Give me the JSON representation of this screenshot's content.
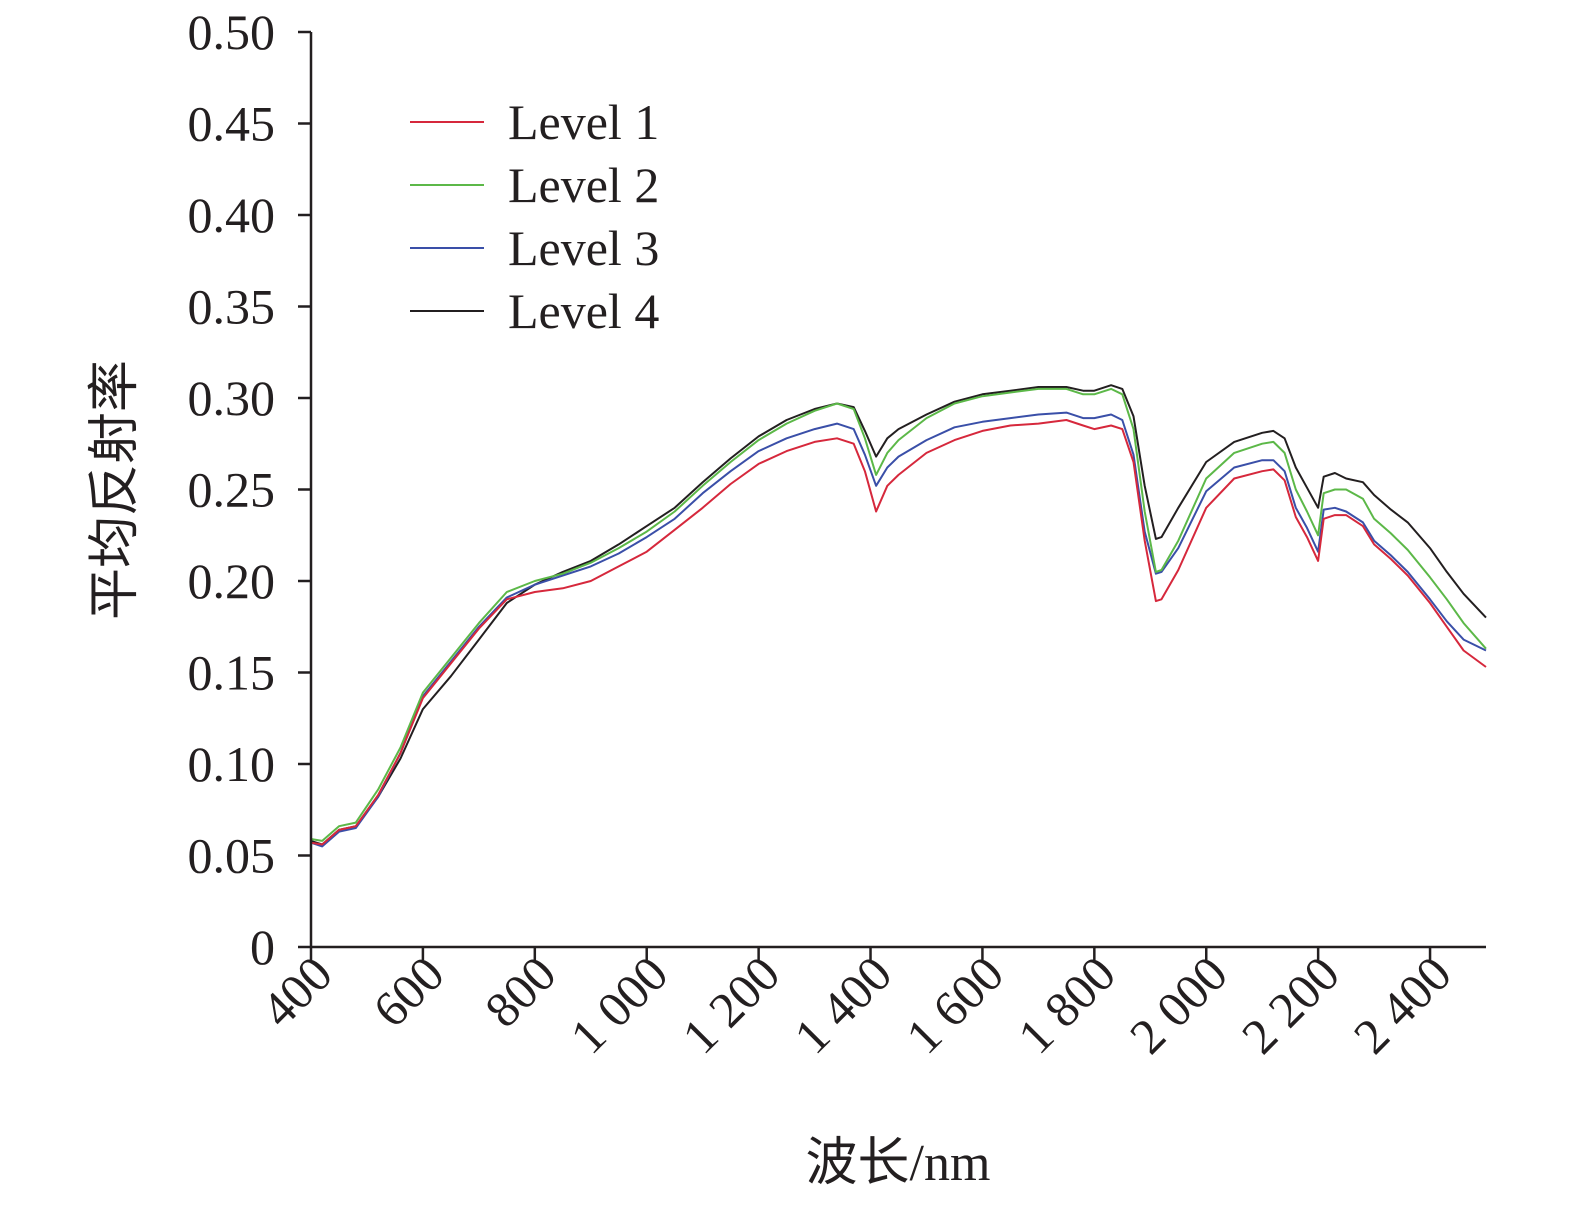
{
  "chart_data": {
    "type": "line",
    "title": "",
    "xlabel": "波长/nm",
    "ylabel": "平均反射率",
    "xlim": [
      400,
      2500
    ],
    "ylim": [
      0,
      0.5
    ],
    "x_ticks": [
      400,
      600,
      800,
      1000,
      1200,
      1400,
      1600,
      1800,
      2000,
      2200,
      2400
    ],
    "x_tick_labels": [
      "400",
      "600",
      "800",
      "1 000",
      "1 200",
      "1 400",
      "1 600",
      "1 800",
      "2 000",
      "2 200",
      "2 400"
    ],
    "y_ticks": [
      0,
      0.05,
      0.1,
      0.15,
      0.2,
      0.25,
      0.3,
      0.35,
      0.4,
      0.45,
      0.5
    ],
    "y_tick_labels": [
      "0",
      "0.05",
      "0.10",
      "0.15",
      "0.20",
      "0.25",
      "0.30",
      "0.35",
      "0.40",
      "0.45",
      "0.50"
    ],
    "grid": false,
    "legend_position": "top-left",
    "x": [
      400,
      420,
      450,
      480,
      520,
      560,
      600,
      650,
      700,
      750,
      800,
      850,
      900,
      950,
      1000,
      1050,
      1100,
      1150,
      1200,
      1250,
      1300,
      1340,
      1370,
      1390,
      1410,
      1430,
      1450,
      1500,
      1550,
      1600,
      1650,
      1700,
      1750,
      1780,
      1800,
      1830,
      1850,
      1870,
      1890,
      1910,
      1920,
      1950,
      2000,
      2050,
      2100,
      2120,
      2140,
      2160,
      2180,
      2200,
      2210,
      2230,
      2250,
      2280,
      2300,
      2330,
      2360,
      2400,
      2430,
      2460,
      2500
    ],
    "series": [
      {
        "name": "Level 1",
        "color": "#d6283c",
        "values": [
          0.057,
          0.056,
          0.064,
          0.066,
          0.083,
          0.106,
          0.136,
          0.155,
          0.174,
          0.19,
          0.194,
          0.196,
          0.2,
          0.208,
          0.216,
          0.228,
          0.24,
          0.253,
          0.264,
          0.271,
          0.276,
          0.278,
          0.275,
          0.26,
          0.238,
          0.252,
          0.258,
          0.27,
          0.277,
          0.282,
          0.285,
          0.286,
          0.288,
          0.285,
          0.283,
          0.285,
          0.283,
          0.265,
          0.222,
          0.189,
          0.19,
          0.206,
          0.24,
          0.256,
          0.26,
          0.261,
          0.255,
          0.235,
          0.224,
          0.211,
          0.234,
          0.236,
          0.236,
          0.23,
          0.22,
          0.212,
          0.203,
          0.188,
          0.175,
          0.162,
          0.153
        ]
      },
      {
        "name": "Level 2",
        "color": "#5cb848",
        "values": [
          0.059,
          0.058,
          0.066,
          0.068,
          0.086,
          0.109,
          0.139,
          0.158,
          0.177,
          0.194,
          0.2,
          0.204,
          0.21,
          0.218,
          0.227,
          0.238,
          0.252,
          0.265,
          0.277,
          0.286,
          0.293,
          0.297,
          0.294,
          0.278,
          0.258,
          0.27,
          0.277,
          0.289,
          0.297,
          0.301,
          0.303,
          0.305,
          0.305,
          0.302,
          0.302,
          0.305,
          0.302,
          0.283,
          0.238,
          0.205,
          0.206,
          0.222,
          0.256,
          0.27,
          0.275,
          0.276,
          0.27,
          0.25,
          0.238,
          0.225,
          0.248,
          0.25,
          0.25,
          0.245,
          0.234,
          0.226,
          0.217,
          0.202,
          0.19,
          0.177,
          0.163
        ]
      },
      {
        "name": "Level 3",
        "color": "#3a4fa8",
        "values": [
          0.057,
          0.055,
          0.063,
          0.065,
          0.082,
          0.106,
          0.137,
          0.156,
          0.175,
          0.191,
          0.198,
          0.203,
          0.208,
          0.215,
          0.224,
          0.234,
          0.248,
          0.26,
          0.271,
          0.278,
          0.283,
          0.286,
          0.283,
          0.269,
          0.252,
          0.262,
          0.268,
          0.277,
          0.284,
          0.287,
          0.289,
          0.291,
          0.292,
          0.289,
          0.289,
          0.291,
          0.288,
          0.269,
          0.227,
          0.204,
          0.205,
          0.218,
          0.249,
          0.262,
          0.266,
          0.266,
          0.26,
          0.24,
          0.229,
          0.216,
          0.239,
          0.24,
          0.238,
          0.232,
          0.222,
          0.214,
          0.205,
          0.19,
          0.178,
          0.168,
          0.162
        ]
      },
      {
        "name": "Level 4",
        "color": "#231f20",
        "values": [
          0.058,
          0.056,
          0.064,
          0.066,
          0.082,
          0.103,
          0.13,
          0.148,
          0.168,
          0.188,
          0.198,
          0.205,
          0.211,
          0.22,
          0.23,
          0.24,
          0.254,
          0.267,
          0.279,
          0.288,
          0.294,
          0.297,
          0.295,
          0.282,
          0.268,
          0.278,
          0.283,
          0.291,
          0.298,
          0.302,
          0.304,
          0.306,
          0.306,
          0.304,
          0.304,
          0.307,
          0.305,
          0.29,
          0.252,
          0.223,
          0.224,
          0.24,
          0.265,
          0.276,
          0.281,
          0.282,
          0.278,
          0.262,
          0.251,
          0.24,
          0.257,
          0.259,
          0.256,
          0.254,
          0.247,
          0.239,
          0.232,
          0.218,
          0.205,
          0.193,
          0.18
        ]
      }
    ]
  }
}
